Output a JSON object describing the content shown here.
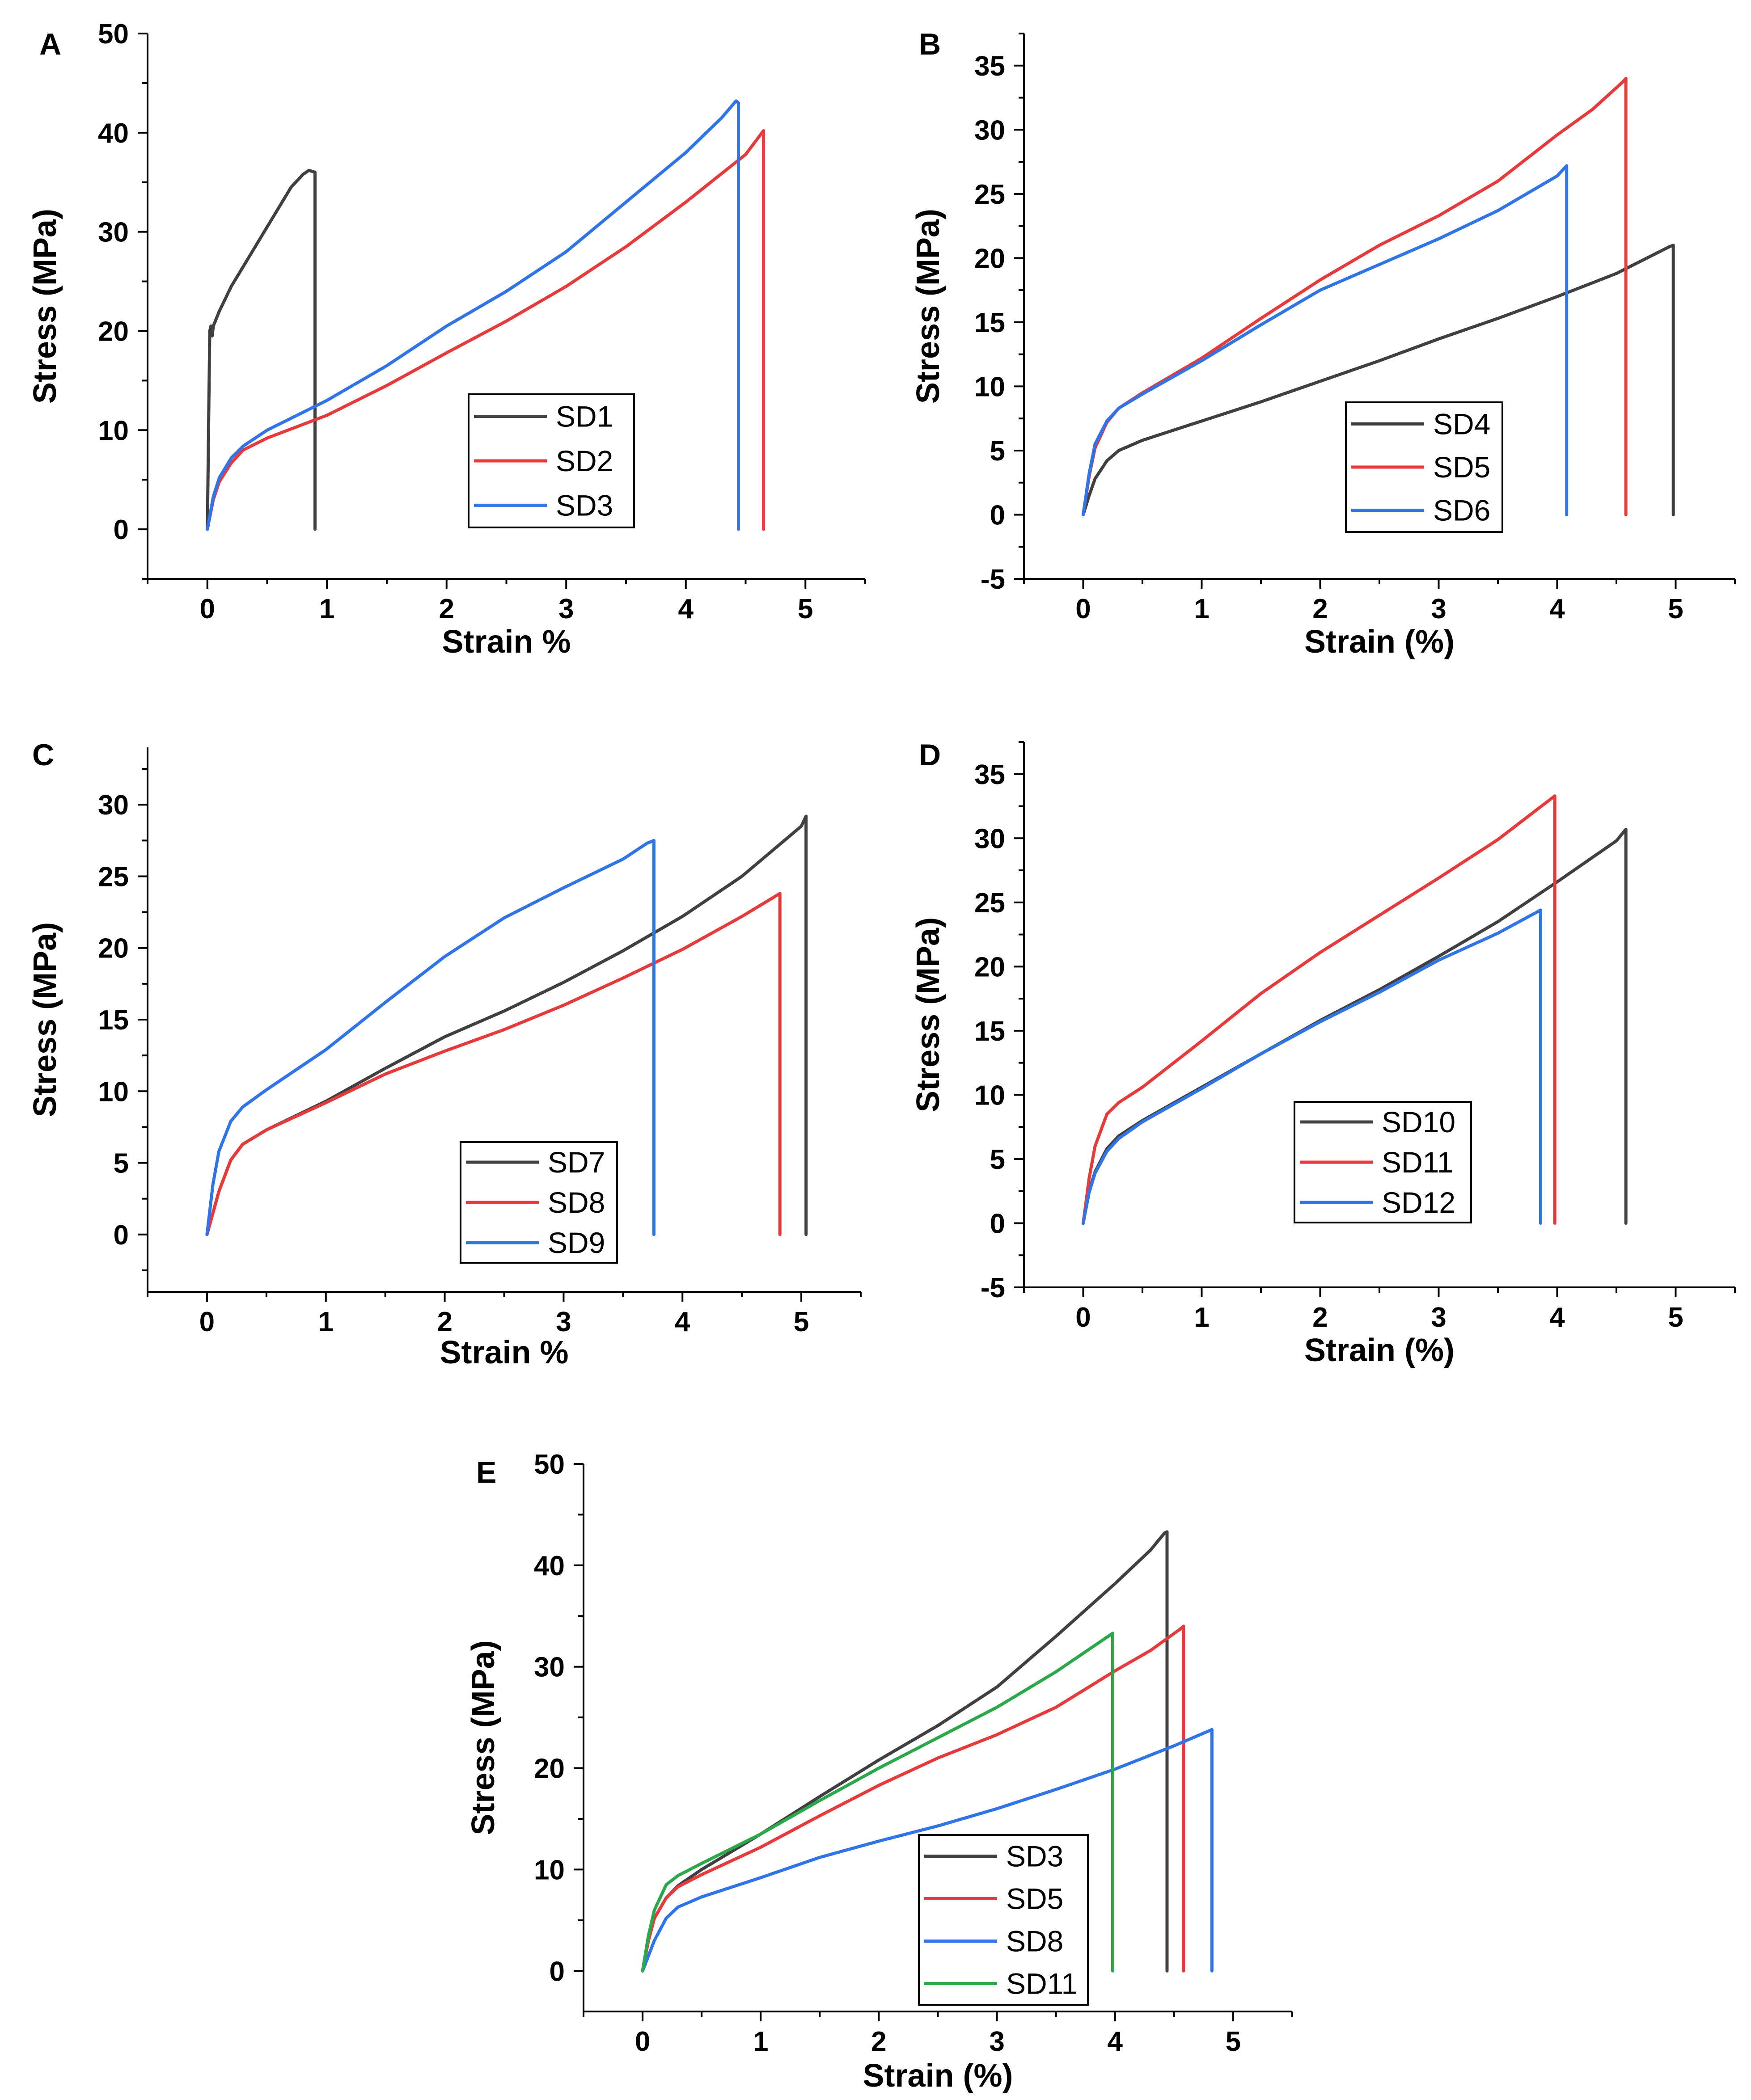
{
  "figure": {
    "panels": [
      "A",
      "B",
      "C",
      "D",
      "E"
    ]
  },
  "chart_data": [
    {
      "panel": "A",
      "type": "line",
      "title": "",
      "xlabel": "Strain %",
      "ylabel": "Stress (MPa)",
      "xlim": [
        -0.5,
        5.5
      ],
      "ylim": [
        -5,
        50
      ],
      "xticks": [
        0,
        1,
        2,
        3,
        4,
        5
      ],
      "yticks": [
        0,
        10,
        20,
        30,
        40,
        50
      ],
      "legend": {
        "position": "lower-right"
      },
      "series": [
        {
          "name": "SD1",
          "color": "#404040",
          "x": [
            0,
            0.01,
            0.02,
            0.03,
            0.04,
            0.05,
            0.1,
            0.2,
            0.3,
            0.4,
            0.5,
            0.6,
            0.7,
            0.8,
            0.85,
            0.9,
            0.9
          ],
          "y": [
            0,
            10,
            20,
            20.5,
            19.5,
            20.5,
            22,
            24.5,
            26.5,
            28.5,
            30.5,
            32.5,
            34.5,
            35.8,
            36.2,
            36,
            0
          ]
        },
        {
          "name": "SD2",
          "color": "#e83a3a",
          "x": [
            0,
            0.05,
            0.1,
            0.2,
            0.3,
            0.5,
            1,
            1.5,
            2,
            2.5,
            3,
            3.5,
            4,
            4.5,
            4.65,
            4.65
          ],
          "y": [
            0,
            3,
            4.8,
            6.7,
            8,
            9.2,
            11.5,
            14.5,
            17.8,
            21,
            24.5,
            28.5,
            33,
            37.8,
            40.2,
            0
          ]
        },
        {
          "name": "SD3",
          "color": "#2f74e8",
          "x": [
            0,
            0.05,
            0.1,
            0.2,
            0.3,
            0.5,
            1,
            1.5,
            2,
            2.5,
            3,
            3.5,
            4,
            4.3,
            4.42,
            4.44,
            4.44
          ],
          "y": [
            0,
            3.3,
            5.2,
            7.2,
            8.4,
            10,
            13,
            16.5,
            20.5,
            24,
            28,
            33,
            38,
            41.5,
            43.2,
            43,
            0
          ]
        }
      ]
    },
    {
      "panel": "B",
      "type": "line",
      "title": "",
      "xlabel": "Strain (%)",
      "ylabel": "Stress (MPa)",
      "xlim": [
        -0.5,
        5.5
      ],
      "ylim": [
        -5,
        37.5
      ],
      "xticks": [
        0,
        1,
        2,
        3,
        4,
        5
      ],
      "yticks": [
        -5,
        0,
        5,
        10,
        15,
        20,
        25,
        30,
        35
      ],
      "legend": {
        "position": "lower-right"
      },
      "series": [
        {
          "name": "SD4",
          "color": "#404040",
          "x": [
            0,
            0.05,
            0.1,
            0.2,
            0.3,
            0.5,
            1,
            1.5,
            2,
            2.5,
            3,
            3.5,
            4,
            4.5,
            4.95,
            4.98,
            4.98
          ],
          "y": [
            0,
            1.5,
            2.8,
            4.2,
            5,
            5.8,
            7.3,
            8.8,
            10.4,
            12,
            13.7,
            15.3,
            17,
            18.8,
            20.9,
            21,
            0
          ]
        },
        {
          "name": "SD5",
          "color": "#e83a3a",
          "x": [
            0,
            0.05,
            0.1,
            0.2,
            0.3,
            0.5,
            1,
            1.5,
            2,
            2.5,
            3,
            3.5,
            4,
            4.3,
            4.55,
            4.58,
            4.58
          ],
          "y": [
            0,
            3,
            5.2,
            7.2,
            8.3,
            9.5,
            12.2,
            15.3,
            18.3,
            21,
            23.3,
            26,
            29.6,
            31.6,
            33.7,
            34,
            0
          ]
        },
        {
          "name": "SD6",
          "color": "#2f74e8",
          "x": [
            0,
            0.05,
            0.1,
            0.2,
            0.3,
            0.5,
            1,
            1.5,
            2,
            2.5,
            3,
            3.5,
            4,
            4.08,
            4.08
          ],
          "y": [
            0,
            3.2,
            5.5,
            7.3,
            8.3,
            9.4,
            12,
            14.8,
            17.5,
            19.5,
            21.5,
            23.7,
            26.4,
            27.2,
            0
          ]
        }
      ]
    },
    {
      "panel": "C",
      "type": "line",
      "title": "",
      "xlabel": "Strain %",
      "ylabel": "Stress (MPa)",
      "xlim": [
        -0.5,
        5.5
      ],
      "ylim": [
        -4,
        34
      ],
      "xticks": [
        0,
        1,
        2,
        3,
        4,
        5
      ],
      "yticks": [
        0,
        5,
        10,
        15,
        20,
        25,
        30
      ],
      "legend": {
        "position": "lower-right"
      },
      "series": [
        {
          "name": "SD7",
          "color": "#404040",
          "x": [
            0,
            0.05,
            0.1,
            0.2,
            0.3,
            0.5,
            1,
            1.5,
            2,
            2.5,
            3,
            3.5,
            4,
            4.5,
            5,
            5.04,
            5.04
          ],
          "y": [
            0,
            1.5,
            3,
            5.2,
            6.3,
            7.3,
            9.3,
            11.6,
            13.8,
            15.6,
            17.6,
            19.8,
            22.2,
            25,
            28.5,
            29.2,
            0
          ]
        },
        {
          "name": "SD8",
          "color": "#e83a3a",
          "x": [
            0,
            0.05,
            0.1,
            0.2,
            0.3,
            0.5,
            1,
            1.5,
            2,
            2.5,
            3,
            3.5,
            4,
            4.5,
            4.82,
            4.82
          ],
          "y": [
            0,
            1.5,
            3,
            5.2,
            6.3,
            7.3,
            9.2,
            11.2,
            12.8,
            14.3,
            16,
            17.9,
            19.9,
            22.2,
            23.8,
            0
          ]
        },
        {
          "name": "SD9",
          "color": "#2f74e8",
          "x": [
            0,
            0.05,
            0.1,
            0.2,
            0.3,
            0.5,
            1,
            1.5,
            2,
            2.5,
            3,
            3.5,
            3.7,
            3.76,
            3.76
          ],
          "y": [
            0,
            3.5,
            5.8,
            7.9,
            8.9,
            10.1,
            12.9,
            16.2,
            19.4,
            22.1,
            24.2,
            26.2,
            27.3,
            27.5,
            0
          ]
        }
      ]
    },
    {
      "panel": "D",
      "type": "line",
      "title": "",
      "xlabel": "Strain (%)",
      "ylabel": "Stress (MPa)",
      "xlim": [
        -0.5,
        5.5
      ],
      "ylim": [
        -5,
        37.5
      ],
      "xticks": [
        0,
        1,
        2,
        3,
        4,
        5
      ],
      "yticks": [
        -5,
        0,
        5,
        10,
        15,
        20,
        25,
        30,
        35
      ],
      "legend": {
        "position": "lower-right"
      },
      "series": [
        {
          "name": "SD10",
          "color": "#404040",
          "x": [
            0,
            0.05,
            0.1,
            0.2,
            0.3,
            0.5,
            1,
            1.5,
            2,
            2.5,
            3,
            3.5,
            4,
            4.5,
            4.58,
            4.58
          ],
          "y": [
            0,
            2.5,
            4,
            5.8,
            6.8,
            8,
            10.6,
            13.2,
            15.8,
            18.2,
            20.8,
            23.5,
            26.6,
            29.8,
            30.7,
            0
          ]
        },
        {
          "name": "SD11",
          "color": "#e83a3a",
          "x": [
            0,
            0.05,
            0.1,
            0.2,
            0.3,
            0.5,
            1,
            1.5,
            2,
            2.5,
            3,
            3.5,
            3.98,
            3.98
          ],
          "y": [
            0,
            3.5,
            6,
            8.5,
            9.4,
            10.6,
            14.2,
            17.9,
            21.1,
            24,
            26.9,
            29.9,
            33.3,
            0
          ]
        },
        {
          "name": "SD12",
          "color": "#2f74e8",
          "x": [
            0,
            0.05,
            0.1,
            0.2,
            0.3,
            0.5,
            1,
            1.5,
            2,
            2.5,
            3,
            3.5,
            3.82,
            3.86,
            3.86
          ],
          "y": [
            0,
            2.4,
            3.9,
            5.6,
            6.6,
            7.9,
            10.5,
            13.2,
            15.7,
            18,
            20.5,
            22.6,
            24.2,
            24.4,
            0
          ]
        }
      ]
    },
    {
      "panel": "E",
      "type": "line",
      "title": "",
      "xlabel": "Strain (%)",
      "ylabel": "Stress (MPa)",
      "xlim": [
        -0.5,
        5.5
      ],
      "ylim": [
        -4,
        50
      ],
      "xticks": [
        0,
        1,
        2,
        3,
        4,
        5
      ],
      "yticks": [
        0,
        10,
        20,
        30,
        40,
        50
      ],
      "legend": {
        "position": "lower-right"
      },
      "series": [
        {
          "name": "SD3",
          "color": "#404040",
          "x": [
            0,
            0.05,
            0.1,
            0.2,
            0.3,
            0.5,
            1,
            1.5,
            2,
            2.5,
            3,
            3.5,
            4,
            4.3,
            4.42,
            4.44,
            4.44
          ],
          "y": [
            0,
            3.3,
            5.2,
            7.2,
            8.4,
            10,
            13.5,
            17.2,
            20.8,
            24.2,
            28,
            33,
            38.2,
            41.5,
            43.2,
            43.3,
            0
          ]
        },
        {
          "name": "SD5",
          "color": "#e83a3a",
          "x": [
            0,
            0.05,
            0.1,
            0.2,
            0.3,
            0.5,
            1,
            1.5,
            2,
            2.5,
            3,
            3.5,
            4,
            4.3,
            4.55,
            4.58,
            4.58
          ],
          "y": [
            0,
            3,
            5.2,
            7.2,
            8.3,
            9.5,
            12.2,
            15.3,
            18.3,
            21,
            23.3,
            26,
            29.6,
            31.6,
            33.7,
            34,
            0
          ]
        },
        {
          "name": "SD8",
          "color": "#2f74e8",
          "x": [
            0,
            0.05,
            0.1,
            0.2,
            0.3,
            0.5,
            1,
            1.5,
            2,
            2.5,
            3,
            3.5,
            4,
            4.5,
            4.82,
            4.82
          ],
          "y": [
            0,
            1.5,
            3,
            5.2,
            6.3,
            7.3,
            9.2,
            11.2,
            12.8,
            14.3,
            16,
            17.9,
            19.9,
            22.2,
            23.8,
            0
          ]
        },
        {
          "name": "SD11",
          "color": "#2aa84a",
          "x": [
            0,
            0.05,
            0.1,
            0.2,
            0.3,
            0.5,
            1,
            1.5,
            2,
            2.5,
            3,
            3.5,
            3.98,
            3.98
          ],
          "y": [
            0,
            3.5,
            6,
            8.5,
            9.4,
            10.6,
            13.5,
            16.8,
            20,
            23,
            26,
            29.5,
            33.3,
            0
          ]
        }
      ]
    }
  ]
}
